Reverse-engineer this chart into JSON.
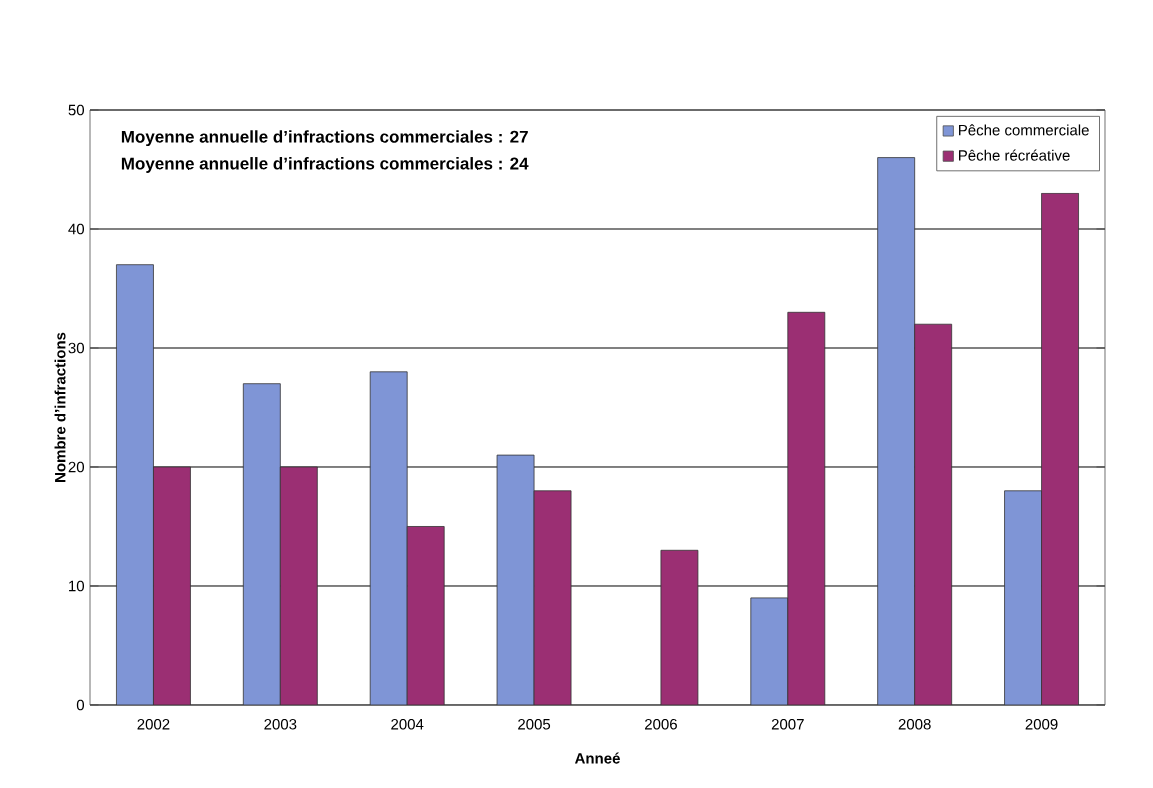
{
  "chart_data": {
    "type": "bar",
    "xlabel": "Anneé",
    "ylabel": "Nombre d’infractions",
    "categories": [
      "2002",
      "2003",
      "2004",
      "2005",
      "2006",
      "2007",
      "2008",
      "2009"
    ],
    "series": [
      {
        "name": "Pêche commerciale",
        "color": "#7f95d6",
        "values": [
          37,
          27,
          28,
          21,
          null,
          9,
          46,
          18
        ]
      },
      {
        "name": "Pêche récréative",
        "color": "#9b2f73",
        "values": [
          20,
          20,
          15,
          18,
          13,
          33,
          32,
          43
        ]
      }
    ],
    "ylim": [
      0,
      50
    ],
    "yticks": [
      0,
      10,
      20,
      30,
      40,
      50
    ],
    "grid": "y",
    "legend": "top right",
    "annotations": [
      "Moyenne annuelle d’infractions commerciales : 27",
      "Moyenne annuelle d’infractions commerciales : 24"
    ]
  }
}
